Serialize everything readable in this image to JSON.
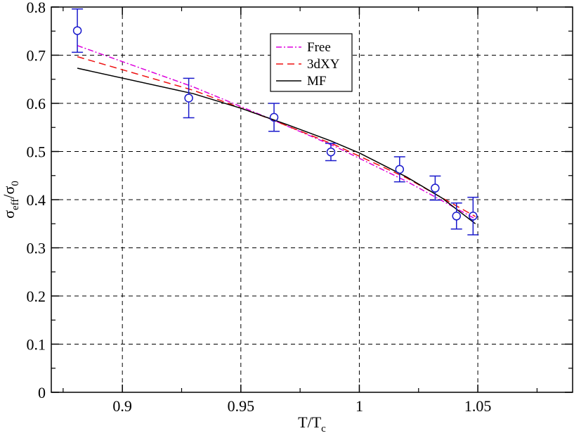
{
  "chart_data": {
    "type": "scatter",
    "xlabel": {
      "main": "T/T",
      "sub": "c"
    },
    "ylabel": {
      "main": "σ",
      "sub1": "eff",
      "mid": "/σ",
      "sub2": "0"
    },
    "xlim": [
      0.87,
      1.09
    ],
    "ylim": [
      0,
      0.8
    ],
    "x_ticks": [
      0.9,
      0.95,
      1.0,
      1.05
    ],
    "x_tick_labels": [
      "0.9",
      "0.95",
      "1",
      "1.05"
    ],
    "y_ticks": [
      0,
      0.1,
      0.2,
      0.3,
      0.4,
      0.5,
      0.6,
      0.7,
      0.8
    ],
    "y_tick_labels": [
      "0",
      "0.1",
      "0.2",
      "0.3",
      "0.4",
      "0.5",
      "0.6",
      "0.7",
      "0.8"
    ],
    "grid": true,
    "legend_position": "top-center",
    "points": {
      "color": "#1a1acc",
      "x": [
        0.881,
        0.928,
        0.964,
        0.988,
        1.017,
        1.032,
        1.041,
        1.048
      ],
      "y": [
        0.751,
        0.611,
        0.571,
        0.499,
        0.463,
        0.424,
        0.366,
        0.366
      ],
      "err": [
        0.045,
        0.041,
        0.029,
        0.018,
        0.026,
        0.025,
        0.027,
        0.039
      ]
    },
    "series": [
      {
        "name": "Free",
        "color": "#dd00dd",
        "style": "dash-dot",
        "x": [
          0.881,
          0.93,
          0.96,
          0.99,
          1.02,
          1.049
        ],
        "y": [
          0.72,
          0.634,
          0.573,
          0.51,
          0.438,
          0.36
        ]
      },
      {
        "name": "3dXY",
        "color": "#ee1111",
        "style": "dashed",
        "x": [
          0.881,
          0.93,
          0.96,
          0.99,
          1.02,
          1.049
        ],
        "y": [
          0.697,
          0.627,
          0.572,
          0.513,
          0.445,
          0.365
        ]
      },
      {
        "name": "MF",
        "color": "#000000",
        "style": "solid",
        "x": [
          0.881,
          0.93,
          0.95,
          0.97,
          0.988,
          1.0,
          1.02,
          1.035,
          1.049
        ],
        "y": [
          0.673,
          0.62,
          0.59,
          0.555,
          0.522,
          0.497,
          0.447,
          0.403,
          0.35
        ]
      }
    ]
  }
}
